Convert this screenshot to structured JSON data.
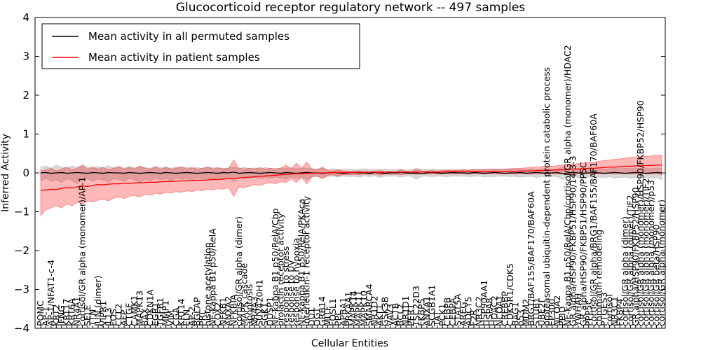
{
  "chart_data": {
    "type": "line",
    "title": "Glucocorticoid receptor regulatory network -- 497 samples",
    "xlabel": "Cellular Entities",
    "ylabel": "Inferred Activity",
    "ylim": [
      -4,
      4
    ],
    "grid": false,
    "legend_position": "upper left",
    "legend": [
      {
        "label": "Mean activity in all permuted samples",
        "color": "#000000"
      },
      {
        "label": "Mean activity in patient samples",
        "color": "#ff0000"
      }
    ],
    "band_colors": {
      "permuted": "rgba(0,0,0,0.15)",
      "patient": "rgba(255,0,0,0.28)"
    },
    "yticks": [
      {
        "value": 4,
        "label": "4"
      },
      {
        "value": 3,
        "label": "3"
      },
      {
        "value": 2,
        "label": "2"
      },
      {
        "value": 1,
        "label": "1"
      },
      {
        "value": 0,
        "label": "0"
      },
      {
        "value": -1,
        "label": "−1"
      },
      {
        "value": -2,
        "label": "−2"
      },
      {
        "value": -3,
        "label": "−3"
      },
      {
        "value": -4,
        "label": "−4"
      }
    ],
    "categories": [
      "POMC",
      "AP-1",
      "AP-1/NFAT1-c-4",
      "KRT2",
      "IFNG",
      "KRT17",
      "KRT6A",
      "NR4A1",
      "cortisol/GR alpha (monomer)/AP-1",
      "SELE",
      "TTN",
      "JUN (dimer)",
      "VIPR1",
      "IL13",
      "FOS",
      "CCL2",
      "AFP",
      "CTGF",
      "CAMK1",
      "MAPK13",
      "BAX",
      "CDKN1A",
      "EGR1",
      "TGFB1",
      "MMP1",
      "VIM",
      "CGA",
      "KRT14",
      "ELN",
      "AP-2",
      "BGLAP",
      "PRL",
      "histone acetylation",
      "NF-kappa B1 p50/RelA",
      "COX2",
      "NFKB1",
      "ANXA2",
      "NFKBIA",
      "cortisol/GR alpha (dimer)",
      "MAPK cascade",
      "apoptosis",
      "NR4A3",
      "SUV420H1",
      "SGK1",
      "DUSP1",
      "NF-kappa B1 p50/RelA/Cbp",
      "prolactin receptor activity",
      "response to stress",
      "response to UV",
      "response to hypoxia",
      "NF-kappa B1 p50/RelA/PKAca",
      "interleukin-1 receptor activity",
      "DUT",
      "OGT",
      "GRB14",
      "MITF",
      "FOSL1",
      "PPL",
      "APBA1",
      "PRKAA1",
      "MAPK14",
      "MAPK11",
      "MAPK10",
      "SMARCA4",
      "NR1D2",
      "AKT1",
      "GSK3B",
      "VAV3",
      "ACTB",
      "BCL2",
      "NR1D1",
      "PER1",
      "TSC22D3",
      "FKBP5",
      "ANXA1",
      "SCGB1A1",
      "TAT",
      "PCK1",
      "CEBPB",
      "CEBPA",
      "STAT5A",
      "AREG",
      "ADCY5",
      "F2R",
      "NR3C2",
      "HSP90AA1",
      "HSPA8",
      "HDAC2",
      "NCOA1",
      "CREBBP",
      "CDK5R1/CDK5",
      "BAG1",
      "p53",
      "MDM2",
      "BRG1/BAF155/BAF170/BAF60A",
      "STUB1",
      "UBE2I",
      "proteasomal ubiquitin-dependent protein catabolic process",
      "EP300",
      "NCOA2",
      "PPID",
      "NF-kappa B1 p50/RelA/Cbp/cortisol/GR alpha (monomer)/HDAC2",
      "GR alpha/HSP90/FKBP51/HSP90/14-3-3",
      "YWHAH",
      "GR alpha/HSP90/FKBP51/HSP90/PP5C",
      "PPP5C",
      "cortisol/GR alpha/BRG1/BAF155/BAF170/BAF60A",
      "chromatin remodeling",
      "PTGES3",
      "cortisol",
      "NR3C1",
      "FKBP4",
      "cortisol/GR alpha (dimer)",
      "cortisol/GR alpha (dimer)/TIF2",
      "GR alpha/HSP90/FKBP52/HSP90",
      "cortisol/GR alpha (monomer)/HSP90/FKBP52/HSP90",
      "cortisol/GR alpha (monomer)/TIF2",
      "cortisol/GR alpha (monomer)/p53",
      "cortisol/GR beta/HSP90",
      "cortisol/GR alpha (monomer)"
    ],
    "series": [
      {
        "name": "Mean activity in all permuted samples",
        "color": "#000000",
        "values": [
          0.0,
          0.01,
          -0.01,
          0.0,
          0.01,
          -0.01,
          0.0,
          0.01,
          0.0,
          -0.01,
          0.01,
          0.0,
          -0.01,
          0.01,
          0.0,
          0.0,
          -0.01,
          0.01,
          0.0,
          -0.01,
          0.0,
          0.01,
          0.0,
          -0.01,
          0.01,
          0.0,
          -0.01,
          0.0,
          0.01,
          0.0,
          -0.01,
          0.0,
          0.01,
          0.0,
          -0.01,
          0.01,
          0.0,
          0.02,
          -0.01,
          0.0,
          0.01,
          0.0,
          -0.01,
          0.0,
          0.01,
          0.0,
          -0.01,
          0.01,
          0.0,
          -0.01,
          0.0,
          0.01,
          0.0,
          0.0,
          -0.01,
          0.0,
          0.01,
          0.0,
          -0.01,
          0.0,
          0.01,
          0.0,
          0.0,
          -0.01,
          0.01,
          0.0,
          -0.01,
          0.0,
          0.0,
          0.01,
          0.0,
          -0.01,
          0.0,
          -0.02,
          0.0,
          0.01,
          0.0,
          -0.01,
          0.0,
          0.01,
          0.0,
          0.0,
          -0.01,
          0.01,
          0.0,
          -0.01,
          0.0,
          0.01,
          0.0,
          -0.01,
          0.0,
          0.0,
          0.01,
          -0.01,
          0.0,
          0.01,
          0.0,
          -0.01,
          0.0,
          0.01,
          -0.02,
          0.0,
          0.01,
          0.0,
          -0.01,
          0.0,
          0.01,
          0.0,
          -0.01,
          0.0,
          0.01,
          0.0,
          -0.01,
          0.0,
          0.01,
          0.0,
          -0.01,
          0.0,
          0.01,
          0.0
        ]
      },
      {
        "name": "Mean activity in patient samples",
        "color": "#ff0000",
        "values": [
          -0.45,
          -0.44,
          -0.42,
          -0.43,
          -0.4,
          -0.38,
          -0.39,
          -0.36,
          -0.34,
          -0.35,
          -0.32,
          -0.3,
          -0.31,
          -0.29,
          -0.28,
          -0.28,
          -0.27,
          -0.27,
          -0.26,
          -0.25,
          -0.25,
          -0.24,
          -0.24,
          -0.23,
          -0.22,
          -0.22,
          -0.21,
          -0.21,
          -0.2,
          -0.2,
          -0.19,
          -0.19,
          -0.18,
          -0.17,
          -0.17,
          -0.16,
          -0.15,
          -0.14,
          -0.13,
          -0.12,
          -0.11,
          -0.1,
          -0.09,
          -0.08,
          -0.07,
          -0.06,
          -0.05,
          -0.04,
          -0.03,
          -0.02,
          -0.02,
          -0.01,
          -0.01,
          0.0,
          0.0,
          0.0,
          0.01,
          0.01,
          0.01,
          0.01,
          0.01,
          0.02,
          0.01,
          0.02,
          0.02,
          0.01,
          0.02,
          0.02,
          0.02,
          0.02,
          0.02,
          0.02,
          0.02,
          0.02,
          0.02,
          0.02,
          0.02,
          0.02,
          0.03,
          0.03,
          0.03,
          0.03,
          0.03,
          0.03,
          0.03,
          0.03,
          0.03,
          0.04,
          0.04,
          0.04,
          0.04,
          0.04,
          0.05,
          0.05,
          0.05,
          0.06,
          0.06,
          0.07,
          0.07,
          0.08,
          0.08,
          0.09,
          0.1,
          0.1,
          0.11,
          0.12,
          0.12,
          0.13,
          0.14,
          0.15,
          0.15,
          0.16,
          0.17,
          0.17,
          0.18,
          0.18,
          0.19,
          0.19,
          0.2,
          0.2
        ]
      }
    ],
    "bands": [
      {
        "name": "permuted-band",
        "lo": [
          -0.2,
          -0.15,
          -0.22,
          -0.18,
          -0.25,
          -0.15,
          -0.2,
          -0.28,
          -0.18,
          -0.15,
          -0.22,
          -0.16,
          -0.19,
          -0.24,
          -0.15,
          -0.18,
          -0.22,
          -0.14,
          -0.18,
          -0.25,
          -0.16,
          -0.2,
          -0.14,
          -0.18,
          -0.15,
          -0.2,
          -0.13,
          -0.17,
          -0.14,
          -0.19,
          -0.13,
          -0.16,
          -0.14,
          -0.18,
          -0.12,
          -0.16,
          -0.13,
          -0.22,
          -0.12,
          -0.15,
          -0.13,
          -0.11,
          -0.16,
          -0.12,
          -0.14,
          -0.11,
          -0.13,
          -0.17,
          -0.1,
          -0.15,
          -0.11,
          -0.18,
          -0.1,
          -0.09,
          -0.13,
          -0.09,
          -0.08,
          -0.11,
          -0.08,
          -0.1,
          -0.09,
          -0.11,
          -0.08,
          -0.1,
          -0.08,
          -0.12,
          -0.08,
          -0.09,
          -0.08,
          -0.11,
          -0.08,
          -0.09,
          -0.16,
          -0.09,
          -0.08,
          -0.1,
          -0.08,
          -0.09,
          -0.1,
          -0.08,
          -0.09,
          -0.08,
          -0.1,
          -0.09,
          -0.08,
          -0.11,
          -0.09,
          -0.1,
          -0.08,
          -0.09,
          -0.1,
          -0.09,
          -0.11,
          -0.1,
          -0.09,
          -0.12,
          -0.1,
          -0.11,
          -0.09,
          -0.1,
          -0.17,
          -0.11,
          -0.1,
          -0.12,
          -0.11,
          -0.1,
          -0.13,
          -0.11,
          -0.12,
          -0.1,
          -0.13,
          -0.12,
          -0.11,
          -0.14,
          -0.12,
          -0.13,
          -0.11,
          -0.14,
          -0.12,
          -0.18
        ],
        "hi": [
          0.15,
          0.18,
          0.12,
          0.2,
          0.15,
          0.12,
          0.18,
          0.14,
          0.22,
          0.15,
          0.12,
          0.17,
          0.14,
          0.19,
          0.13,
          0.16,
          0.12,
          0.18,
          0.13,
          0.16,
          0.14,
          0.12,
          0.17,
          0.13,
          0.15,
          0.12,
          0.16,
          0.13,
          0.15,
          0.12,
          0.14,
          0.12,
          0.15,
          0.13,
          0.14,
          0.12,
          0.13,
          0.15,
          0.12,
          0.14,
          0.12,
          0.13,
          0.11,
          0.14,
          0.12,
          0.11,
          0.13,
          0.12,
          0.14,
          0.11,
          0.12,
          0.13,
          0.11,
          0.1,
          0.12,
          0.09,
          0.11,
          0.09,
          0.1,
          0.09,
          0.1,
          0.09,
          0.11,
          0.09,
          0.1,
          0.09,
          0.1,
          0.08,
          0.09,
          0.1,
          0.08,
          0.09,
          0.12,
          0.09,
          0.08,
          0.1,
          0.08,
          0.09,
          0.08,
          0.1,
          0.08,
          0.09,
          0.08,
          0.1,
          0.08,
          0.09,
          0.1,
          0.08,
          0.09,
          0.08,
          0.1,
          0.09,
          0.1,
          0.09,
          0.11,
          0.09,
          0.1,
          0.11,
          0.09,
          0.1,
          0.15,
          0.1,
          0.11,
          0.1,
          0.12,
          0.1,
          0.11,
          0.12,
          0.1,
          0.11,
          0.12,
          0.11,
          0.12,
          0.11,
          0.13,
          0.11,
          0.12,
          0.11,
          0.13,
          0.12
        ]
      },
      {
        "name": "patient-band",
        "lo": [
          -1.1,
          -0.95,
          -0.9,
          -0.85,
          -0.9,
          -0.8,
          -0.85,
          -0.75,
          -0.8,
          -0.72,
          -0.75,
          -0.7,
          -0.68,
          -0.72,
          -0.65,
          -0.62,
          -0.66,
          -0.6,
          -0.58,
          -0.62,
          -0.55,
          -0.58,
          -0.52,
          -0.55,
          -0.5,
          -0.52,
          -0.48,
          -0.5,
          -0.46,
          -0.48,
          -0.44,
          -0.46,
          -0.42,
          -0.44,
          -0.4,
          -0.42,
          -0.38,
          -0.6,
          -0.36,
          -0.38,
          -0.34,
          -0.3,
          -0.32,
          -0.28,
          -0.25,
          -0.28,
          -0.22,
          -0.25,
          -0.15,
          -0.25,
          -0.12,
          -0.28,
          -0.1,
          -0.08,
          -0.15,
          -0.06,
          -0.05,
          -0.08,
          -0.04,
          -0.05,
          -0.04,
          -0.05,
          -0.03,
          -0.04,
          -0.03,
          -0.06,
          -0.03,
          -0.04,
          -0.03,
          -0.05,
          -0.03,
          -0.02,
          -0.04,
          -0.02,
          -0.03,
          -0.02,
          -0.03,
          -0.02,
          -0.02,
          -0.03,
          -0.02,
          -0.02,
          -0.03,
          -0.02,
          -0.02,
          -0.03,
          -0.02,
          -0.02,
          -0.03,
          -0.02,
          -0.02,
          -0.03,
          -0.02,
          -0.02,
          -0.03,
          -0.02,
          -0.02,
          -0.02,
          -0.02,
          -0.03,
          -0.02,
          -0.02,
          -0.03,
          -0.02,
          -0.02,
          -0.02,
          -0.03,
          -0.02,
          -0.02,
          -0.02,
          -0.03,
          -0.02,
          -0.02,
          -0.02,
          -0.03,
          -0.02,
          -0.02,
          -0.03,
          -0.02,
          -0.05
        ],
        "hi": [
          0.05,
          0.08,
          0.12,
          0.05,
          0.1,
          0.15,
          0.08,
          0.12,
          0.18,
          0.1,
          0.15,
          0.1,
          0.14,
          0.08,
          0.12,
          0.16,
          0.1,
          0.14,
          0.1,
          0.18,
          0.12,
          0.1,
          0.15,
          0.1,
          0.14,
          0.1,
          0.12,
          0.16,
          0.1,
          0.14,
          0.1,
          0.12,
          0.15,
          0.1,
          0.13,
          0.1,
          0.12,
          0.33,
          0.12,
          0.1,
          0.12,
          0.1,
          0.14,
          0.1,
          0.12,
          0.1,
          0.12,
          0.2,
          0.1,
          0.25,
          0.12,
          0.28,
          0.1,
          0.08,
          0.15,
          0.06,
          0.05,
          0.08,
          0.05,
          0.04,
          0.04,
          0.05,
          0.04,
          0.03,
          0.04,
          0.06,
          0.03,
          0.04,
          0.03,
          0.08,
          0.04,
          0.04,
          0.1,
          0.05,
          0.05,
          0.06,
          0.05,
          0.06,
          0.07,
          0.06,
          0.07,
          0.08,
          0.07,
          0.08,
          0.09,
          0.08,
          0.09,
          0.1,
          0.09,
          0.1,
          0.11,
          0.12,
          0.12,
          0.13,
          0.14,
          0.15,
          0.16,
          0.18,
          0.17,
          0.19,
          0.2,
          0.22,
          0.23,
          0.24,
          0.26,
          0.27,
          0.28,
          0.3,
          0.32,
          0.33,
          0.35,
          0.36,
          0.38,
          0.4,
          0.41,
          0.42,
          0.43,
          0.44,
          0.45,
          0.45
        ]
      }
    ]
  }
}
